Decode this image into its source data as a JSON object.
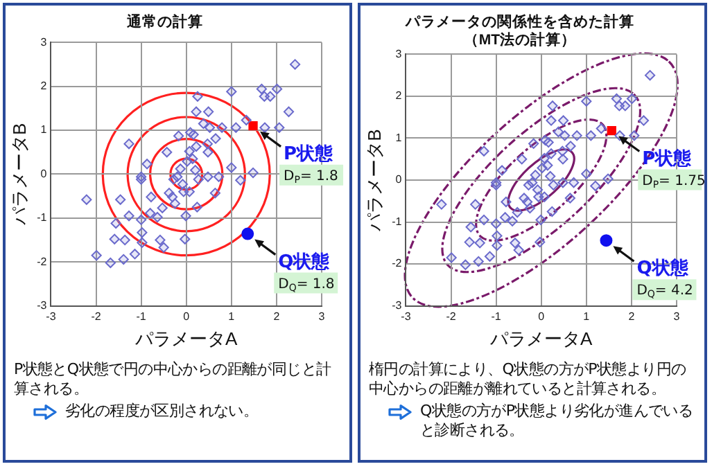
{
  "chart_data": [
    {
      "type": "scatter",
      "title": "通常の計算",
      "xlabel": "パラメータA",
      "ylabel": "パラメータB",
      "xlim": [
        -3,
        3
      ],
      "ylim": [
        -3,
        3
      ],
      "xticks": [
        -3,
        -2,
        -1,
        0,
        1,
        2,
        3
      ],
      "yticks": [
        -3,
        -2,
        -1,
        0,
        1,
        2,
        3
      ],
      "grid": true,
      "series": [
        {
          "marker": "diamond",
          "color": "#6a6acc",
          "x": [
            2.41,
            1.67,
            2.01,
            1.73,
            1.86,
            1.0,
            0.25,
            2.27,
            0.22,
            0.49,
            1.33,
            0.38,
            0.79,
            1.1,
            1.74,
            2.06,
            0.52,
            0.09,
            -0.17,
            0.16,
            -1.27,
            0.47,
            0.65,
            0.22,
            -0.43,
            0.07,
            0.48,
            -0.87,
            0.02,
            0.14,
            1.0,
            1.48,
            -0.13,
            0.2,
            -1.0,
            0.48,
            0.27,
            0.72,
            1.2,
            -2.21,
            -1.46,
            -1.0,
            -0.78,
            -0.38,
            -0.31,
            -0.06,
            0.07,
            0.64,
            -0.25,
            0.24,
            -0.53,
            -0.8,
            -0.64,
            -1.27,
            -0.01,
            -1.56,
            -1.0,
            -1.59,
            -1.36,
            -0.98,
            -0.58,
            -0.5,
            -0.03,
            -0.98,
            -1.99,
            -1.68,
            -1.39,
            -1.14,
            -0.2,
            -0.08,
            -0.28
          ],
          "values": [
            2.5,
            1.94,
            1.94,
            1.77,
            1.77,
            1.88,
            1.77,
            1.42,
            1.42,
            1.42,
            1.23,
            1.15,
            1.06,
            1.06,
            1.06,
            1.06,
            1.06,
            0.95,
            0.87,
            0.9,
            0.69,
            0.69,
            0.81,
            0.63,
            0.5,
            0.52,
            0.5,
            0.23,
            0.29,
            0.35,
            0.15,
            0.03,
            0.12,
            0.09,
            -0.06,
            -0.06,
            -0.12,
            -0.06,
            -0.14,
            -0.58,
            -0.58,
            -0.12,
            -0.52,
            -0.43,
            -0.52,
            -0.4,
            -0.4,
            -0.43,
            -0.67,
            -0.75,
            -0.77,
            -0.89,
            -0.98,
            -0.95,
            -0.95,
            -1.12,
            -1.04,
            -1.48,
            -1.5,
            -1.33,
            -1.5,
            -1.67,
            -1.48,
            -1.56,
            -1.85,
            -2.02,
            -1.94,
            -1.82,
            -0.06,
            -0.23,
            -0.12
          ]
        },
        {
          "marker": "square",
          "color": "#ff0000",
          "x": [
            1.48
          ],
          "values": [
            1.1
          ]
        },
        {
          "marker": "circle",
          "color": "#1010ee",
          "x": [
            1.36
          ],
          "values": [
            -1.36
          ]
        }
      ],
      "annotations": [
        {
          "text": "P状態\nD$_{P}$= 1.8",
          "x": 1.48,
          "y": 1.1
        },
        {
          "text": "Q状態\nD$_{Q}$= 1.8",
          "x": 1.36,
          "y": -1.36
        },
        "P状態とQ状態で円の中心からの距離が同じと計算される。",
        "劣化の程度が区別されない。"
      ]
    },
    {
      "type": "scatter",
      "title": "パラメータの関係性を含めた計算",
      "subtitle": "（MT法の計算）",
      "xlabel": "パラメータA",
      "ylabel": "パラメータB",
      "xlim": [
        -3,
        3
      ],
      "ylim": [
        -3,
        3
      ],
      "xticks": [
        -3,
        -2,
        -1,
        0,
        1,
        2,
        3
      ],
      "yticks": [
        -3,
        -2,
        -1,
        0,
        1,
        2,
        3
      ],
      "grid": true,
      "series": [
        {
          "marker": "diamond",
          "color": "#6a6acc",
          "x": [
            2.41,
            1.67,
            2.01,
            1.73,
            1.86,
            1.0,
            0.25,
            2.27,
            0.22,
            0.49,
            1.33,
            0.38,
            0.79,
            1.1,
            1.74,
            2.06,
            0.52,
            0.09,
            -0.17,
            0.16,
            -1.27,
            0.47,
            0.65,
            0.22,
            -0.43,
            0.07,
            0.48,
            -0.87,
            0.02,
            0.14,
            1.0,
            1.48,
            -0.13,
            0.2,
            -1.0,
            0.48,
            0.27,
            0.72,
            1.2,
            -2.21,
            -1.46,
            -1.0,
            -0.78,
            -0.38,
            -0.31,
            -0.06,
            0.07,
            0.64,
            -0.25,
            0.24,
            -0.53,
            -0.8,
            -0.64,
            -1.27,
            -0.01,
            -1.56,
            -1.0,
            -1.59,
            -1.36,
            -0.98,
            -0.58,
            -0.5,
            -0.03,
            -0.98,
            -1.99,
            -1.68,
            -1.39,
            -1.14,
            -0.2,
            -0.08,
            -0.28
          ],
          "values": [
            2.5,
            1.94,
            1.94,
            1.77,
            1.77,
            1.88,
            1.77,
            1.42,
            1.42,
            1.42,
            1.23,
            1.15,
            1.06,
            1.06,
            1.06,
            1.06,
            1.06,
            0.95,
            0.87,
            0.9,
            0.69,
            0.69,
            0.81,
            0.63,
            0.5,
            0.52,
            0.5,
            0.23,
            0.29,
            0.35,
            0.15,
            0.03,
            0.12,
            0.09,
            -0.06,
            -0.06,
            -0.12,
            -0.06,
            -0.14,
            -0.58,
            -0.58,
            -0.12,
            -0.52,
            -0.43,
            -0.52,
            -0.4,
            -0.4,
            -0.43,
            -0.67,
            -0.75,
            -0.77,
            -0.89,
            -0.98,
            -0.95,
            -0.95,
            -1.12,
            -1.04,
            -1.48,
            -1.5,
            -1.33,
            -1.5,
            -1.67,
            -1.48,
            -1.56,
            -1.85,
            -2.02,
            -1.94,
            -1.82,
            -0.06,
            -0.23,
            -0.12
          ]
        },
        {
          "marker": "square",
          "color": "#ff0000",
          "x": [
            1.56
          ],
          "values": [
            1.18
          ]
        },
        {
          "marker": "circle",
          "color": "#1010ee",
          "x": [
            1.44
          ],
          "values": [
            -1.44
          ]
        }
      ],
      "annotations": [
        {
          "text": "P状態\nD$_{P}$= 1.75",
          "x": 1.56,
          "y": 1.18
        },
        {
          "text": "Q状態\nD$_{Q}$= 4.2",
          "x": 1.44,
          "y": -1.44
        },
        "楕円の計算により、Q状態の方がP状態より円の中心からの距離が離れていると計算される。",
        "Q状態の方がP状態より劣化が進んでいると診断される。"
      ]
    }
  ]
}
